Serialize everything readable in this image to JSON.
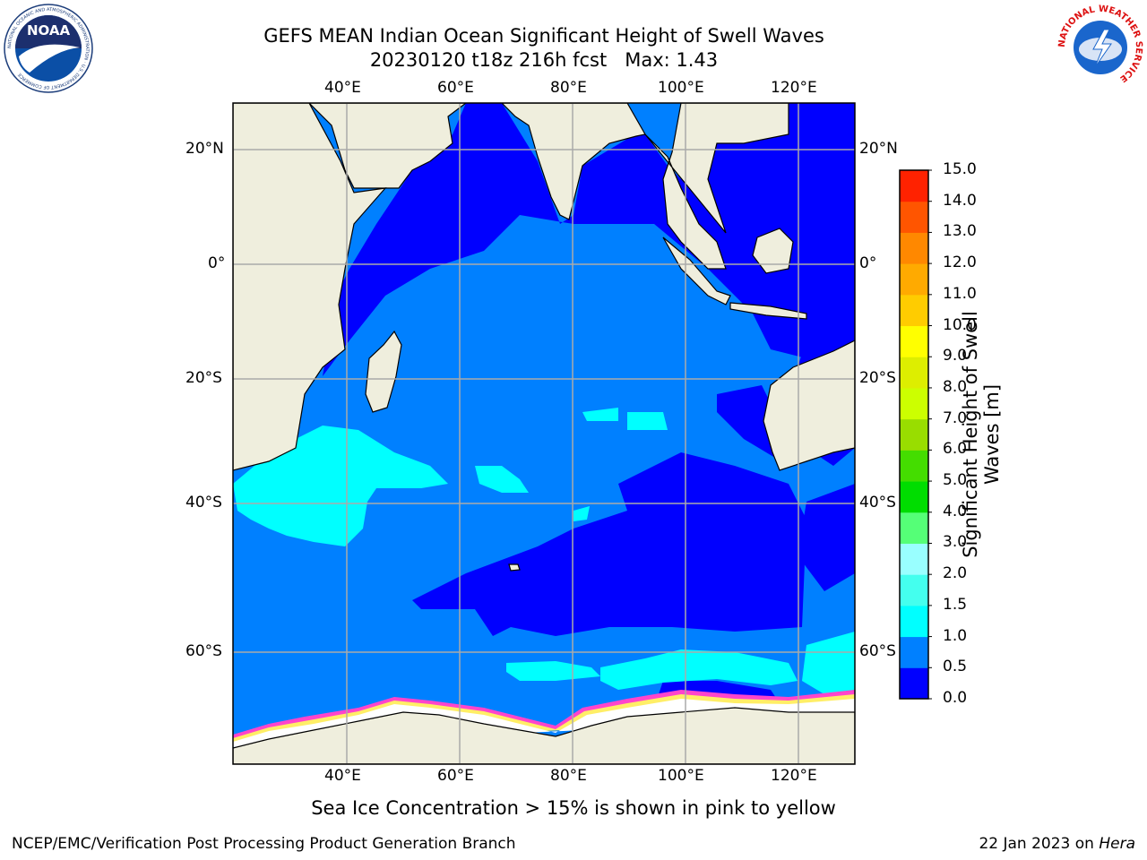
{
  "title": {
    "line1": "GEFS MEAN Indian Ocean Significant Height of Swell Waves",
    "line2": "20230120 t18z 216h fcst   Max: 1.43"
  },
  "map": {
    "lon_labels": [
      "40°E",
      "60°E",
      "80°E",
      "100°E",
      "120°E"
    ],
    "lat_labels": [
      "20°N",
      "0°",
      "20°S",
      "40°S",
      "60°S"
    ],
    "colors": {
      "land": "#efeedd",
      "deep_blue": "#0000ff",
      "mid_blue": "#0080ff",
      "cyan": "#00ffff",
      "ice_white": "#ffffff",
      "ice_pink": "#ff44cc",
      "ice_yellow": "#ffee66",
      "grid": "#aaaaaa"
    }
  },
  "colorbar": {
    "title_line1": "Significant Height of Swell",
    "title_line2": "Waves [m]",
    "tick_labels": [
      "0.0",
      "0.5",
      "1.0",
      "1.5",
      "2.0",
      "3.0",
      "4.0",
      "5.0",
      "6.0",
      "7.0",
      "8.0",
      "9.0",
      "10.0",
      "11.0",
      "12.0",
      "13.0",
      "14.0",
      "15.0"
    ],
    "colors": [
      "#0000ff",
      "#0080ff",
      "#00ffff",
      "#44ffee",
      "#99ffff",
      "#55ff77",
      "#00dd00",
      "#44dd00",
      "#99dd00",
      "#ccff00",
      "#ddee00",
      "#ffff00",
      "#ffcc00",
      "#ffaa00",
      "#ff8800",
      "#ff5500",
      "#ff2200",
      "#ff0000"
    ]
  },
  "logos": {
    "left": {
      "text": "NOAA",
      "ring_text": "NATIONAL OCEANIC AND ATMOSPHERIC ADMINISTRATION · U.S. DEPARTMENT OF COMMERCE"
    },
    "right": {
      "ring_text": "NATIONAL WEATHER SERVICE"
    }
  },
  "caption": "Sea Ice Concentration > 15% is shown in pink to yellow",
  "footer": {
    "left": "NCEP/EMC/Verification Post Processing Product Generation Branch",
    "right_date": "22 Jan 2023 on ",
    "right_host": "Hera"
  }
}
